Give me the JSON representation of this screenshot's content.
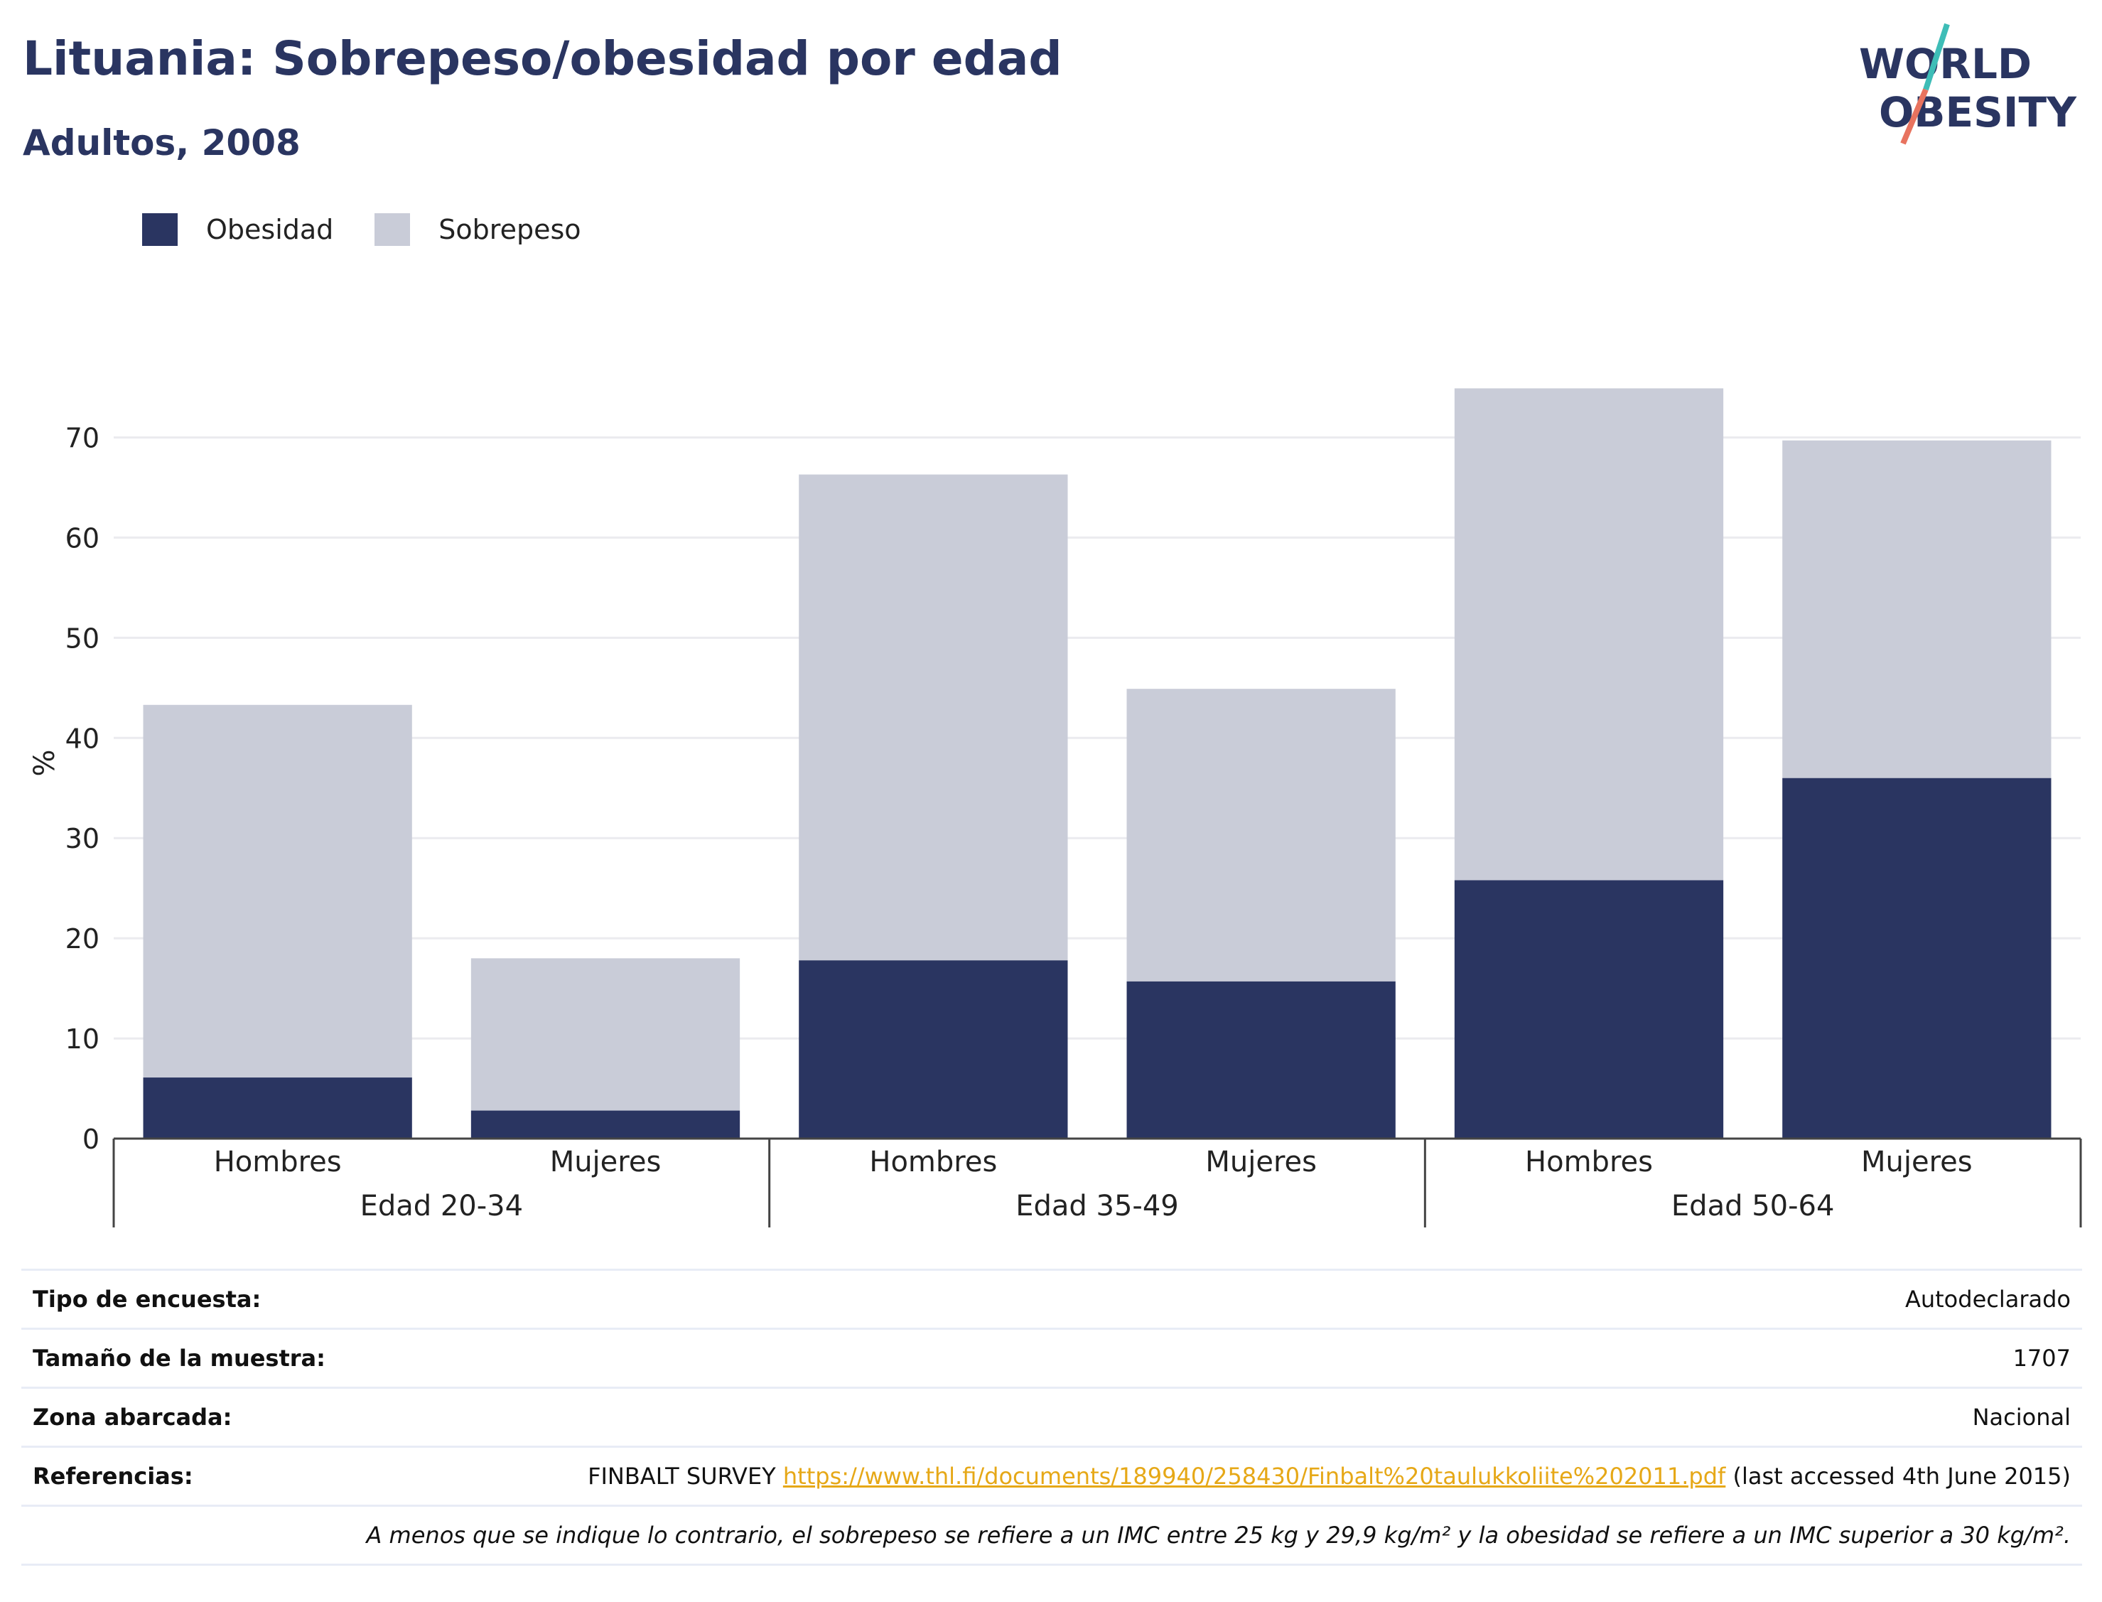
{
  "header": {
    "title": "Lituania: Sobrepeso/obesidad por edad",
    "subtitle": "Adultos, 2008",
    "logo_line1": "WORLD",
    "logo_line2": "OBESITY"
  },
  "colors": {
    "obesity": "#2a3561",
    "overweight": "#c9ccd8",
    "accent_teal": "#3ebdb7",
    "accent_coral": "#e8735f"
  },
  "chart_data": {
    "type": "bar",
    "stacked": true,
    "title": "Lituania: Sobrepeso/obesidad por edad",
    "subtitle": "Adultos, 2008",
    "ylabel": "%",
    "ylim": [
      0,
      75
    ],
    "yticks": [
      0,
      10,
      20,
      30,
      40,
      50,
      60,
      70
    ],
    "grid": true,
    "legend_position": "top-left",
    "groups": [
      "Edad 20-34",
      "Edad 35-49",
      "Edad 50-64"
    ],
    "categories": [
      "Hombres",
      "Mujeres",
      "Hombres",
      "Mujeres",
      "Hombres",
      "Mujeres"
    ],
    "series": [
      {
        "name": "Obesidad",
        "values": [
          6.1,
          2.8,
          17.8,
          15.7,
          25.8,
          36.0
        ]
      },
      {
        "name": "Sobrepeso",
        "values": [
          37.2,
          15.2,
          48.5,
          29.2,
          49.1,
          33.7
        ]
      }
    ]
  },
  "info": {
    "survey_type_label": "Tipo de encuesta:",
    "survey_type_value": "Autodeclarado",
    "sample_label": "Tamaño de la muestra:",
    "sample_value": "1707",
    "area_label": "Zona abarcada:",
    "area_value": "Nacional",
    "refs_label": "Referencias:",
    "refs_prefix": "FINBALT SURVEY",
    "refs_link": "https://www.thl.fi/documents/189940/258430/Finbalt%20taulukkoliite%202011.pdf",
    "refs_suffix": "(last accessed 4th June 2015)",
    "note": "A menos que se indique lo contrario, el sobrepeso se refiere a un IMC entre 25 kg y 29,9 kg/m² y la obesidad se refiere a un IMC superior a 30 kg/m²."
  }
}
